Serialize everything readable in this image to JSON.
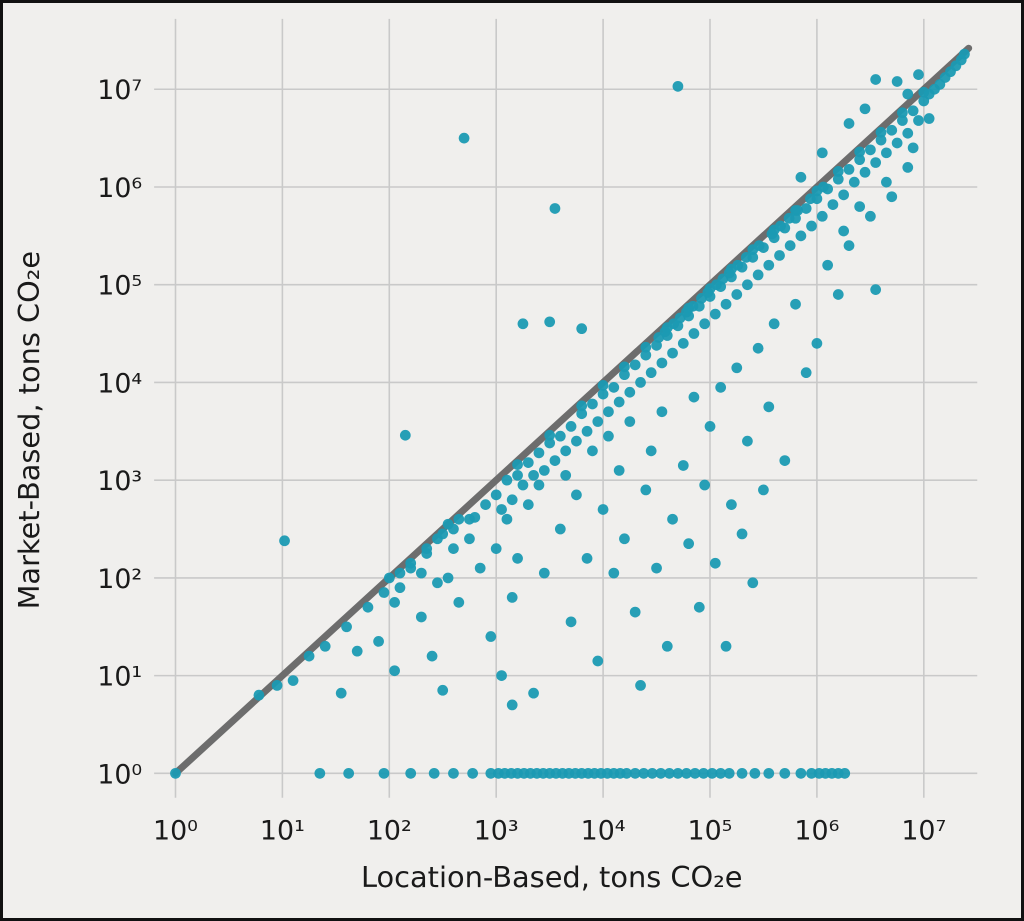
{
  "chart_data": {
    "type": "scatter",
    "title": "",
    "xlabel": "Location-Based, tons CO₂e",
    "ylabel": "Market-Based, tons CO₂e",
    "x_scale": "log",
    "y_scale": "log",
    "tick_base": "10",
    "tick_exponents": [
      0,
      1,
      2,
      3,
      4,
      5,
      6,
      7
    ],
    "xlim_log": [
      -0.2,
      7.5
    ],
    "ylim_log": [
      -0.25,
      7.72
    ],
    "grid": true,
    "legend": "none",
    "identity_line": {
      "from": [
        0.0,
        0.0
      ],
      "to": [
        7.42,
        7.42
      ]
    },
    "colors": {
      "background": "#f0efed",
      "grid": "#c9c9c9",
      "point": "#1b9ab3",
      "line": "#6d6d6d",
      "text": "#1a1a1a",
      "border": "#111111"
    },
    "points_log10": [
      [
        0.0,
        0.0
      ],
      [
        1.35,
        0.0
      ],
      [
        1.62,
        0.0
      ],
      [
        1.95,
        0.0
      ],
      [
        2.2,
        0.0
      ],
      [
        2.42,
        0.0
      ],
      [
        2.6,
        0.0
      ],
      [
        2.78,
        0.0
      ],
      [
        2.95,
        0.0
      ],
      [
        3.02,
        0.0
      ],
      [
        3.08,
        0.0
      ],
      [
        3.14,
        0.0
      ],
      [
        3.2,
        0.0
      ],
      [
        3.26,
        0.0
      ],
      [
        3.32,
        0.0
      ],
      [
        3.38,
        0.0
      ],
      [
        3.44,
        0.0
      ],
      [
        3.5,
        0.0
      ],
      [
        3.56,
        0.0
      ],
      [
        3.62,
        0.0
      ],
      [
        3.68,
        0.0
      ],
      [
        3.74,
        0.0
      ],
      [
        3.8,
        0.0
      ],
      [
        3.86,
        0.0
      ],
      [
        3.92,
        0.0
      ],
      [
        3.98,
        0.0
      ],
      [
        4.04,
        0.0
      ],
      [
        4.1,
        0.0
      ],
      [
        4.16,
        0.0
      ],
      [
        4.22,
        0.0
      ],
      [
        4.3,
        0.0
      ],
      [
        4.38,
        0.0
      ],
      [
        4.46,
        0.0
      ],
      [
        4.54,
        0.0
      ],
      [
        4.62,
        0.0
      ],
      [
        4.7,
        0.0
      ],
      [
        4.78,
        0.0
      ],
      [
        4.86,
        0.0
      ],
      [
        4.94,
        0.0
      ],
      [
        5.02,
        0.0
      ],
      [
        5.1,
        0.0
      ],
      [
        5.18,
        0.0
      ],
      [
        5.3,
        0.0
      ],
      [
        5.42,
        0.0
      ],
      [
        5.55,
        0.0
      ],
      [
        5.7,
        0.0
      ],
      [
        5.85,
        0.0
      ],
      [
        5.95,
        0.0
      ],
      [
        6.02,
        0.0
      ],
      [
        6.08,
        0.0
      ],
      [
        6.14,
        0.0
      ],
      [
        6.2,
        0.0
      ],
      [
        6.26,
        0.0
      ],
      [
        2.8,
        2.62
      ],
      [
        2.9,
        2.75
      ],
      [
        3.0,
        2.85
      ],
      [
        3.05,
        2.7
      ],
      [
        3.1,
        3.0
      ],
      [
        3.15,
        2.8
      ],
      [
        3.2,
        3.05
      ],
      [
        3.25,
        2.95
      ],
      [
        3.3,
        3.18
      ],
      [
        3.35,
        3.05
      ],
      [
        3.4,
        3.28
      ],
      [
        3.45,
        3.1
      ],
      [
        3.5,
        3.38
      ],
      [
        3.55,
        3.2
      ],
      [
        3.6,
        3.45
      ],
      [
        3.65,
        3.3
      ],
      [
        3.7,
        3.55
      ],
      [
        3.75,
        3.4
      ],
      [
        3.8,
        3.68
      ],
      [
        3.85,
        3.5
      ],
      [
        3.9,
        3.78
      ],
      [
        3.95,
        3.6
      ],
      [
        4.0,
        3.88
      ],
      [
        4.05,
        3.7
      ],
      [
        4.1,
        3.95
      ],
      [
        4.15,
        3.8
      ],
      [
        4.2,
        4.08
      ],
      [
        4.25,
        3.9
      ],
      [
        4.3,
        4.18
      ],
      [
        4.35,
        4.0
      ],
      [
        4.4,
        4.28
      ],
      [
        4.45,
        4.1
      ],
      [
        4.5,
        4.38
      ],
      [
        4.55,
        4.2
      ],
      [
        4.6,
        4.48
      ],
      [
        4.65,
        4.3
      ],
      [
        4.7,
        4.58
      ],
      [
        4.75,
        4.4
      ],
      [
        4.8,
        4.68
      ],
      [
        4.85,
        4.5
      ],
      [
        4.9,
        4.78
      ],
      [
        4.95,
        4.6
      ],
      [
        5.0,
        4.88
      ],
      [
        5.05,
        4.7
      ],
      [
        5.1,
        4.98
      ],
      [
        5.15,
        4.8
      ],
      [
        5.2,
        5.08
      ],
      [
        5.25,
        4.9
      ],
      [
        5.3,
        5.18
      ],
      [
        5.35,
        5.0
      ],
      [
        5.4,
        5.28
      ],
      [
        5.45,
        5.1
      ],
      [
        5.5,
        5.38
      ],
      [
        5.55,
        5.2
      ],
      [
        5.6,
        5.48
      ],
      [
        5.65,
        5.3
      ],
      [
        5.7,
        5.58
      ],
      [
        5.75,
        5.4
      ],
      [
        5.8,
        5.68
      ],
      [
        5.85,
        5.5
      ],
      [
        5.9,
        5.78
      ],
      [
        5.95,
        5.6
      ],
      [
        6.0,
        5.88
      ],
      [
        6.05,
        5.7
      ],
      [
        6.1,
        5.98
      ],
      [
        6.15,
        5.82
      ],
      [
        6.2,
        6.08
      ],
      [
        6.25,
        5.92
      ],
      [
        6.3,
        6.18
      ],
      [
        6.35,
        6.05
      ],
      [
        6.4,
        6.28
      ],
      [
        6.45,
        6.15
      ],
      [
        6.5,
        6.38
      ],
      [
        6.55,
        6.25
      ],
      [
        6.6,
        6.48
      ],
      [
        6.65,
        6.35
      ],
      [
        6.7,
        6.58
      ],
      [
        6.75,
        6.45
      ],
      [
        6.8,
        6.68
      ],
      [
        6.85,
        6.55
      ],
      [
        6.9,
        6.78
      ],
      [
        6.95,
        6.68
      ],
      [
        7.0,
        6.88
      ],
      [
        7.05,
        6.95
      ],
      [
        7.1,
        7.0
      ],
      [
        7.15,
        7.05
      ],
      [
        7.2,
        7.12
      ],
      [
        7.25,
        7.18
      ],
      [
        7.3,
        7.24
      ],
      [
        7.35,
        7.3
      ],
      [
        7.38,
        7.36
      ],
      [
        3.2,
        3.16
      ],
      [
        3.5,
        3.46
      ],
      [
        3.8,
        3.76
      ],
      [
        4.0,
        3.97
      ],
      [
        4.2,
        4.16
      ],
      [
        4.4,
        4.36
      ],
      [
        4.6,
        4.56
      ],
      [
        4.8,
        4.76
      ],
      [
        5.0,
        4.96
      ],
      [
        5.2,
        5.16
      ],
      [
        5.4,
        5.36
      ],
      [
        5.6,
        5.56
      ],
      [
        5.8,
        5.76
      ],
      [
        6.0,
        5.96
      ],
      [
        6.2,
        6.16
      ],
      [
        6.4,
        6.36
      ],
      [
        6.6,
        6.56
      ],
      [
        6.8,
        6.76
      ],
      [
        7.0,
        6.97
      ],
      [
        4.52,
        4.46
      ],
      [
        4.58,
        4.52
      ],
      [
        4.66,
        4.6
      ],
      [
        4.72,
        4.66
      ],
      [
        4.78,
        4.72
      ],
      [
        4.84,
        4.78
      ],
      [
        4.92,
        4.86
      ],
      [
        4.98,
        4.92
      ],
      [
        5.06,
        5.0
      ],
      [
        5.12,
        5.06
      ],
      [
        5.18,
        5.12
      ],
      [
        5.26,
        5.2
      ],
      [
        5.34,
        5.28
      ],
      [
        5.46,
        5.4
      ],
      [
        5.58,
        5.52
      ],
      [
        5.66,
        5.6
      ],
      [
        5.74,
        5.68
      ],
      [
        5.82,
        5.76
      ],
      [
        5.94,
        5.88
      ],
      [
        6.06,
        6.0
      ],
      [
        2.05,
        1.05
      ],
      [
        2.1,
        1.9
      ],
      [
        2.15,
        3.46
      ],
      [
        2.2,
        2.1
      ],
      [
        2.3,
        1.6
      ],
      [
        2.35,
        2.25
      ],
      [
        2.4,
        1.2
      ],
      [
        2.45,
        2.4
      ],
      [
        2.5,
        0.85
      ],
      [
        2.55,
        2.0
      ],
      [
        2.6,
        2.5
      ],
      [
        2.65,
        1.75
      ],
      [
        2.7,
        6.5
      ],
      [
        2.75,
        2.6
      ],
      [
        2.85,
        2.1
      ],
      [
        2.95,
        1.4
      ],
      [
        3.0,
        2.3
      ],
      [
        3.05,
        1.0
      ],
      [
        3.1,
        2.6
      ],
      [
        3.15,
        0.7
      ],
      [
        3.15,
        1.8
      ],
      [
        3.2,
        2.2
      ],
      [
        3.25,
        4.6
      ],
      [
        3.3,
        2.75
      ],
      [
        3.35,
        0.82
      ],
      [
        3.4,
        2.95
      ],
      [
        3.45,
        2.05
      ],
      [
        3.5,
        4.62
      ],
      [
        3.55,
        5.78
      ],
      [
        3.6,
        2.5
      ],
      [
        3.65,
        3.05
      ],
      [
        3.7,
        1.55
      ],
      [
        3.75,
        2.85
      ],
      [
        3.8,
        4.55
      ],
      [
        3.85,
        2.2
      ],
      [
        3.9,
        3.3
      ],
      [
        3.95,
        1.15
      ],
      [
        4.0,
        2.7
      ],
      [
        4.05,
        3.45
      ],
      [
        4.1,
        2.05
      ],
      [
        4.15,
        3.1
      ],
      [
        4.2,
        2.4
      ],
      [
        4.25,
        3.6
      ],
      [
        4.3,
        1.65
      ],
      [
        4.35,
        0.9
      ],
      [
        4.4,
        2.9
      ],
      [
        4.45,
        3.3
      ],
      [
        4.5,
        2.1
      ],
      [
        4.55,
        3.7
      ],
      [
        4.6,
        1.3
      ],
      [
        4.65,
        2.6
      ],
      [
        4.7,
        7.03
      ],
      [
        4.75,
        3.15
      ],
      [
        4.8,
        2.35
      ],
      [
        4.85,
        3.85
      ],
      [
        4.9,
        1.7
      ],
      [
        4.95,
        2.95
      ],
      [
        5.0,
        3.55
      ],
      [
        5.05,
        2.15
      ],
      [
        5.1,
        3.95
      ],
      [
        5.15,
        1.3
      ],
      [
        5.2,
        2.75
      ],
      [
        5.25,
        4.15
      ],
      [
        5.3,
        2.45
      ],
      [
        5.35,
        3.4
      ],
      [
        5.4,
        1.95
      ],
      [
        5.45,
        4.35
      ],
      [
        5.5,
        2.9
      ],
      [
        5.55,
        3.75
      ],
      [
        5.6,
        4.6
      ],
      [
        5.7,
        3.2
      ],
      [
        5.8,
        4.8
      ],
      [
        5.9,
        4.1
      ],
      [
        6.0,
        4.4
      ],
      [
        6.1,
        5.2
      ],
      [
        6.2,
        4.9
      ],
      [
        6.3,
        5.4
      ],
      [
        6.4,
        5.8
      ],
      [
        6.55,
        4.95
      ],
      [
        6.7,
        5.9
      ],
      [
        6.85,
        6.2
      ],
      [
        0.78,
        0.8
      ],
      [
        0.95,
        0.9
      ],
      [
        1.02,
        2.38
      ],
      [
        1.1,
        0.95
      ],
      [
        1.25,
        1.2
      ],
      [
        1.4,
        1.3
      ],
      [
        1.55,
        0.82
      ],
      [
        1.6,
        1.5
      ],
      [
        1.7,
        1.25
      ],
      [
        1.8,
        1.7
      ],
      [
        1.9,
        1.35
      ],
      [
        1.95,
        1.85
      ],
      [
        2.2,
        2.15
      ],
      [
        2.35,
        2.3
      ],
      [
        2.5,
        2.45
      ],
      [
        2.6,
        2.3
      ],
      [
        2.45,
        1.95
      ],
      [
        2.55,
        2.55
      ],
      [
        2.65,
        2.6
      ],
      [
        2.75,
        2.4
      ],
      [
        2.3,
        2.05
      ],
      [
        2.0,
        2.0
      ],
      [
        2.05,
        1.75
      ],
      [
        2.1,
        2.05
      ],
      [
        6.55,
        7.1
      ],
      [
        6.75,
        7.08
      ],
      [
        6.85,
        6.95
      ],
      [
        6.95,
        7.15
      ],
      [
        6.3,
        6.65
      ],
      [
        6.45,
        6.8
      ],
      [
        6.05,
        6.35
      ],
      [
        5.85,
        6.1
      ],
      [
        6.65,
        6.05
      ],
      [
        6.9,
        6.4
      ],
      [
        7.05,
        6.7
      ],
      [
        6.5,
        5.7
      ],
      [
        6.25,
        5.55
      ]
    ]
  }
}
